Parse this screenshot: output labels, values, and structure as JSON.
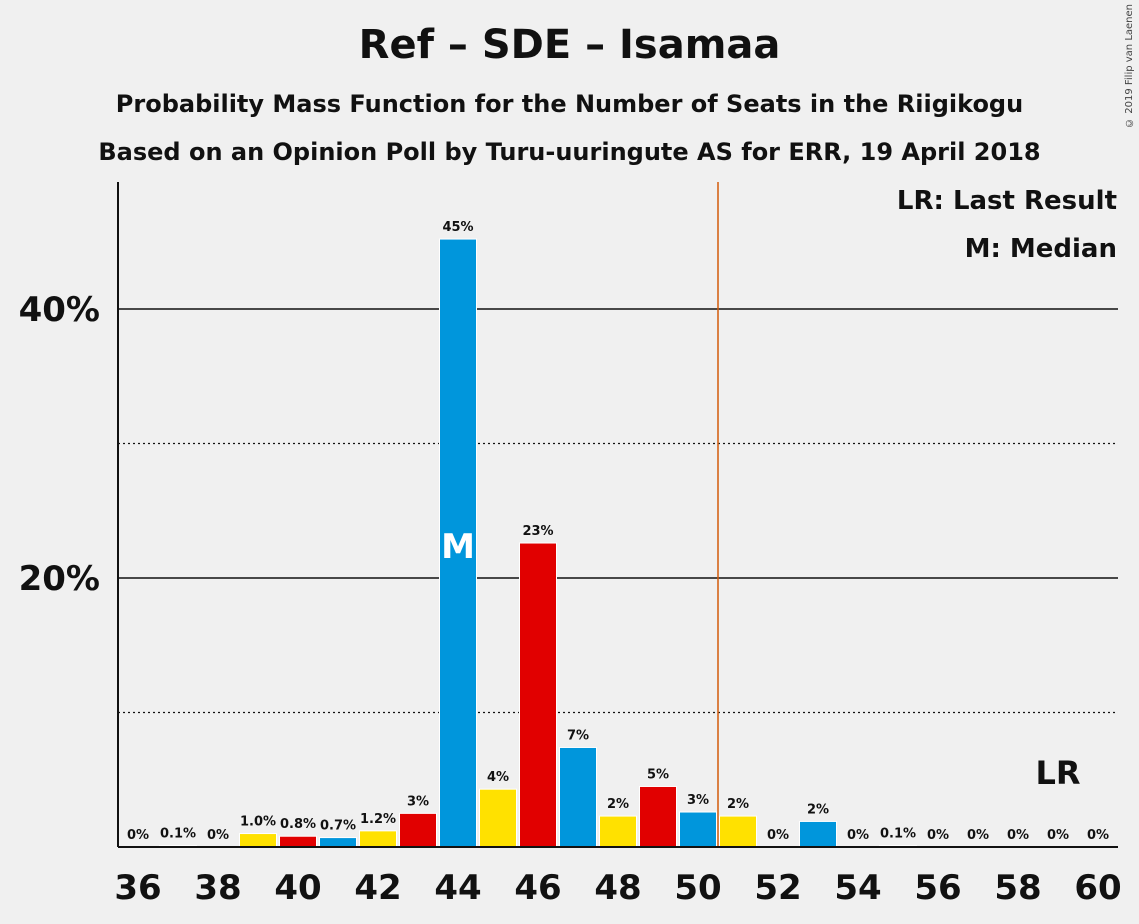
{
  "title": "Ref – SDE – Isamaa",
  "subtitle": "Probability Mass Function for the Number of Seats in the Riigikogu",
  "subtitle2": "Based on an Opinion Poll by Turu-uuringute AS for ERR, 19 April 2018",
  "credit": "© 2019 Filip van Laenen",
  "legend": {
    "lr": "LR: Last Result",
    "m": "M: Median"
  },
  "colors": {
    "yellow": "#FFE100",
    "red": "#E10000",
    "blue": "#0096DC",
    "lr_line": "#D25B0A"
  },
  "chart_data": {
    "type": "bar",
    "x": [
      36,
      37,
      38,
      39,
      40,
      41,
      42,
      43,
      44,
      45,
      46,
      47,
      48,
      49,
      50,
      51,
      52,
      53,
      54,
      55,
      56,
      57,
      58,
      59,
      60
    ],
    "values": [
      0,
      0.1,
      0,
      1.0,
      0.8,
      0.7,
      1.2,
      2.5,
      45.2,
      4.3,
      22.6,
      7.4,
      2.3,
      4.5,
      2.6,
      2.3,
      0,
      1.9,
      0,
      0.1,
      0,
      0,
      0,
      0,
      0
    ],
    "labels": [
      "0%",
      "0.1%",
      "0%",
      "1.0%",
      "0.8%",
      "0.7%",
      "1.2%",
      "3%",
      "45%",
      "4%",
      "23%",
      "7%",
      "2%",
      "5%",
      "3%",
      "2%",
      "0%",
      "2%",
      "0%",
      "0.1%",
      "0%",
      "0%",
      "0%",
      "0%",
      "0%"
    ],
    "bar_colors": [
      "yellow",
      "red",
      "blue",
      "yellow",
      "red",
      "blue",
      "yellow",
      "red",
      "blue",
      "yellow",
      "red",
      "blue",
      "yellow",
      "red",
      "blue",
      "yellow",
      "red",
      "blue",
      "yellow",
      "red",
      "blue",
      "yellow",
      "red",
      "blue",
      "yellow"
    ],
    "xticks": [
      36,
      38,
      40,
      42,
      44,
      46,
      48,
      50,
      52,
      54,
      56,
      58,
      60
    ],
    "yticks_major": [
      {
        "value": 20,
        "label": "20%"
      },
      {
        "value": 40,
        "label": "40%"
      }
    ],
    "yticks_minor": [
      10,
      30
    ],
    "ylim": [
      0,
      49
    ],
    "median": 44,
    "median_label": "M",
    "last_result": 50.5,
    "last_result_label": "LR",
    "last_result_label_x": 59
  }
}
